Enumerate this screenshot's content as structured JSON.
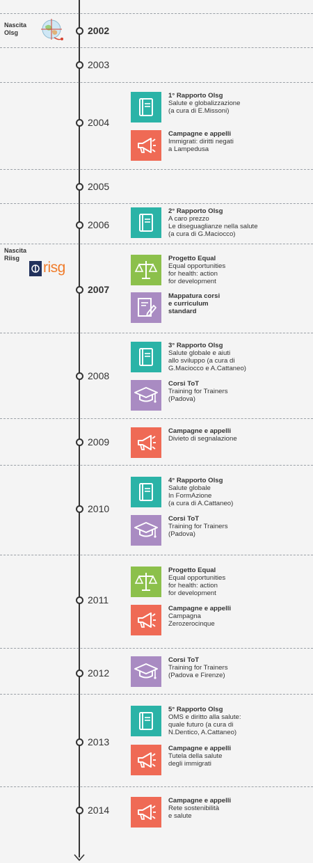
{
  "colors": {
    "rapporto": "#2bb3a7",
    "campagne": "#ef6a55",
    "progetto": "#8cc04b",
    "formazione": "#a98bc2",
    "axis": "#333333"
  },
  "milestones": [
    {
      "label": "Nascita\nOlsg",
      "logo": "olsg-globe-logo"
    },
    {
      "label": "Nascita\nRiisg",
      "logo": "riisg-logo",
      "logo_text": "risg"
    }
  ],
  "years": [
    {
      "label": "2002",
      "bold": true
    },
    {
      "label": "2003"
    },
    {
      "label": "2004"
    },
    {
      "label": "2005"
    },
    {
      "label": "2006"
    },
    {
      "label": "2007",
      "bold": true
    },
    {
      "label": "2008"
    },
    {
      "label": "2009"
    },
    {
      "label": "2010"
    },
    {
      "label": "2011"
    },
    {
      "label": "2012"
    },
    {
      "label": "2013"
    },
    {
      "label": "2014"
    }
  ],
  "events": [
    {
      "year": "2004",
      "kind": "rapporto",
      "icon": "book-icon",
      "title": "1° Rapporto Olsg",
      "body": "Salute e globalizzazione\n(a cura di E.Missoni)"
    },
    {
      "year": "2004",
      "kind": "campagne",
      "icon": "megaphone-icon",
      "title": "Campagne e appelli",
      "body": "Immigrati: diritti negati\na Lampedusa"
    },
    {
      "year": "2006",
      "kind": "rapporto",
      "icon": "book-icon",
      "title": "2° Rapporto Olsg",
      "body": "A caro prezzo\nLe diseguaglianze nella salute\n(a cura di G.Maciocco)"
    },
    {
      "year": "2007",
      "kind": "progetto",
      "icon": "scales-icon",
      "title": "Progetto Equal",
      "body": "Equal opportunities\nfor health: action\nfor development"
    },
    {
      "year": "2007",
      "kind": "formazione",
      "icon": "document-pen-icon",
      "title": "Mappatura corsi\ne curriculum\nstandard",
      "body": ""
    },
    {
      "year": "2008",
      "kind": "rapporto",
      "icon": "book-icon",
      "title": "3° Rapporto Olsg",
      "body": "Salute globale e aiuti\nallo sviluppo (a cura di\nG.Maciocco e A.Cattaneo)"
    },
    {
      "year": "2008",
      "kind": "formazione",
      "icon": "graduation-cap-icon",
      "title": "Corsi ToT",
      "body": "Training for Trainers\n(Padova)"
    },
    {
      "year": "2009",
      "kind": "campagne",
      "icon": "megaphone-icon",
      "title": "Campagne e appelli",
      "body": "Divieto di segnalazione"
    },
    {
      "year": "2010",
      "kind": "rapporto",
      "icon": "book-icon",
      "title": "4° Rapporto Olsg",
      "body": "Salute globale\nIn FormAzione\n(a cura di A.Cattaneo)"
    },
    {
      "year": "2010",
      "kind": "formazione",
      "icon": "graduation-cap-icon",
      "title": "Corsi ToT",
      "body": "Training for Trainers\n(Padova)"
    },
    {
      "year": "2011",
      "kind": "progetto",
      "icon": "scales-icon",
      "title": "Progetto Equal",
      "body": "Equal opportunities\nfor health: action\nfor development"
    },
    {
      "year": "2011",
      "kind": "campagne",
      "icon": "megaphone-icon",
      "title": "Campagne e appelli",
      "body": "Campagna\nZerozerocinque"
    },
    {
      "year": "2012",
      "kind": "formazione",
      "icon": "graduation-cap-icon",
      "title": "Corsi ToT",
      "body": "Training for Trainers\n(Padova e Firenze)"
    },
    {
      "year": "2013",
      "kind": "rapporto",
      "icon": "book-icon",
      "title": "5° Rapporto Olsg",
      "body": "OMS e diritto alla salute:\nquale futuro (a cura di\nN.Dentico, A.Cattaneo)"
    },
    {
      "year": "2013",
      "kind": "campagne",
      "icon": "megaphone-icon",
      "title": "Campagne e appelli",
      "body": "Tutela della salute\ndegli immigrati"
    },
    {
      "year": "2014",
      "kind": "campagne",
      "icon": "megaphone-icon",
      "title": "Campagne e appelli",
      "body": "Rete sostenibilità\ne salute"
    }
  ]
}
